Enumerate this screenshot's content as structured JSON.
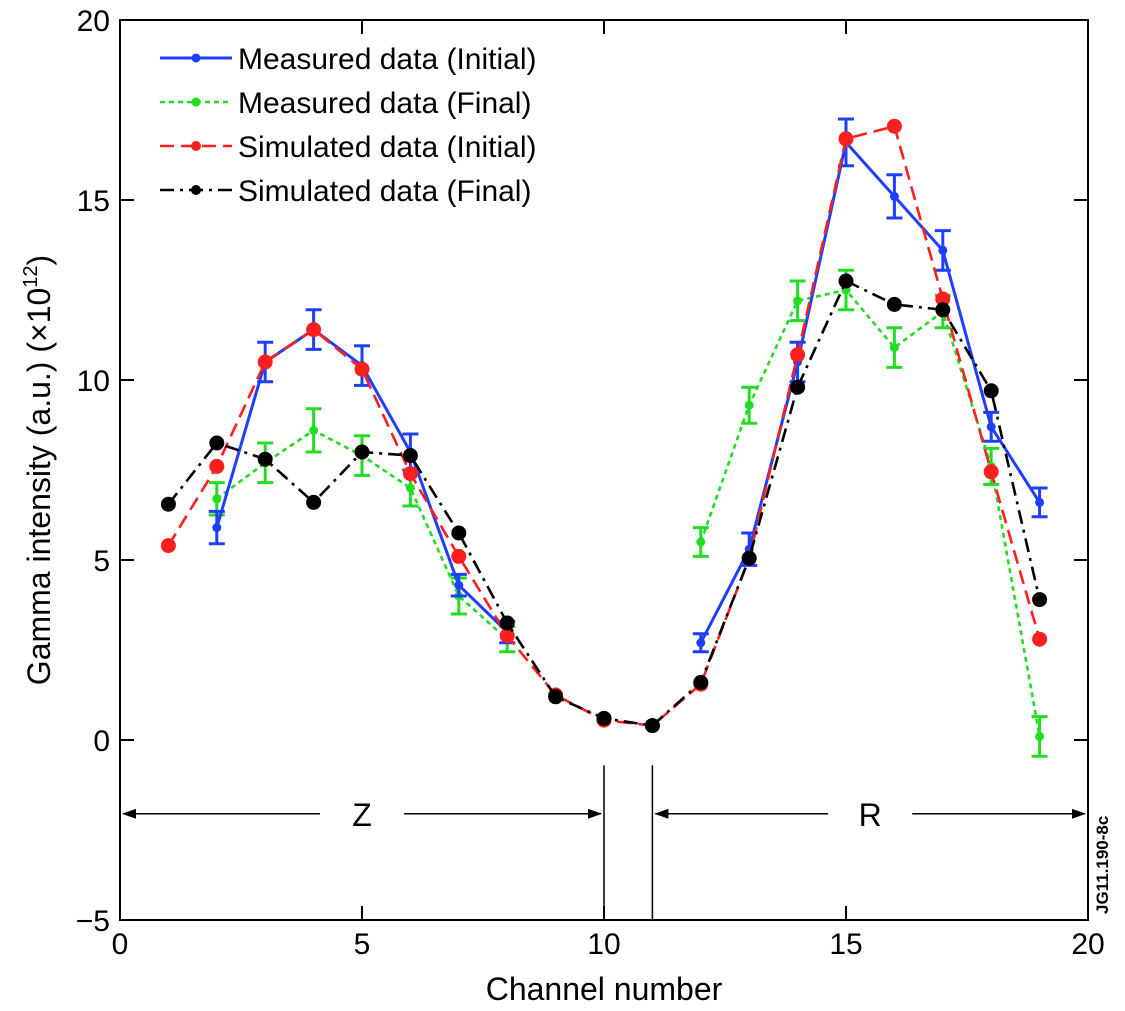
{
  "chart_data": {
    "type": "line",
    "xlabel": "Channel number",
    "ylabel": "Gamma intensity (a.u.) (×10",
    "ylabel_exponent": "12",
    "ylabel_suffix": ")",
    "xlim": [
      0,
      20
    ],
    "ylim": [
      -5,
      20
    ],
    "xticks": [
      0,
      5,
      10,
      15,
      20
    ],
    "yticks": [
      -5,
      0,
      5,
      10,
      15,
      20
    ],
    "xtick_labels": [
      "0",
      "5",
      "10",
      "15",
      "20"
    ],
    "ytick_labels": [
      "−5",
      "0",
      "5",
      "10",
      "15",
      "20"
    ],
    "grid": false,
    "legend_position": "top-left",
    "series": [
      {
        "name": "Measured data (Initial)",
        "color": "#1f3fff",
        "style": "solid",
        "marker": "small-dot",
        "x": [
          2,
          3,
          4,
          5,
          6,
          7,
          8,
          null,
          12,
          13,
          14,
          15,
          16,
          17,
          18,
          19
        ],
        "y": [
          5.9,
          10.5,
          11.4,
          10.4,
          8.0,
          4.3,
          3.0,
          null,
          2.7,
          5.3,
          10.5,
          16.6,
          15.1,
          13.6,
          8.7,
          6.6
        ],
        "err": [
          0.45,
          0.55,
          0.55,
          0.55,
          0.5,
          0.3,
          0.3,
          null,
          0.25,
          0.45,
          0.55,
          0.65,
          0.6,
          0.55,
          0.4,
          0.4
        ]
      },
      {
        "name": "Measured data (Final)",
        "color": "#22dd22",
        "style": "dotted",
        "marker": "small-dot",
        "x": [
          2,
          3,
          4,
          5,
          6,
          7,
          8,
          null,
          12,
          13,
          14,
          15,
          16,
          17,
          18,
          19
        ],
        "y": [
          6.7,
          7.7,
          8.6,
          7.9,
          7.0,
          4.0,
          2.8,
          null,
          5.5,
          9.3,
          12.2,
          12.5,
          10.9,
          11.9,
          7.6,
          0.1
        ],
        "err": [
          0.45,
          0.55,
          0.6,
          0.55,
          0.5,
          0.5,
          0.35,
          null,
          0.4,
          0.5,
          0.55,
          0.55,
          0.55,
          0.45,
          0.5,
          0.55
        ]
      },
      {
        "name": "Simulated data (Initial)",
        "color": "#ff1f1f",
        "style": "dashed",
        "marker": "large-dot",
        "x": [
          1,
          2,
          3,
          4,
          5,
          6,
          7,
          8,
          9,
          10,
          11,
          12,
          13,
          14,
          15,
          16,
          17,
          18,
          19
        ],
        "y": [
          5.4,
          7.6,
          10.5,
          11.4,
          10.3,
          7.4,
          5.1,
          2.9,
          1.25,
          0.55,
          0.4,
          1.55,
          5.05,
          10.7,
          16.7,
          17.05,
          12.25,
          7.45,
          2.8
        ]
      },
      {
        "name": "Simulated data (Final)",
        "color": "#000000",
        "style": "dash-dot",
        "marker": "large-dot",
        "x": [
          1,
          2,
          3,
          4,
          5,
          6,
          7,
          8,
          9,
          10,
          11,
          12,
          13,
          14,
          15,
          16,
          17,
          18,
          19
        ],
        "y": [
          6.55,
          8.25,
          7.8,
          6.6,
          8.0,
          7.9,
          5.75,
          3.25,
          1.2,
          0.6,
          0.4,
          1.6,
          5.05,
          9.8,
          12.75,
          12.1,
          11.95,
          9.7,
          3.9
        ]
      }
    ],
    "annotations": {
      "regions": [
        {
          "label": "Z",
          "x_start": 0,
          "x_end": 10
        },
        {
          "label": "R",
          "x_start": 11,
          "x_end": 20
        }
      ],
      "separators": [
        10,
        11
      ],
      "arrow_y": -2.05,
      "figure_id": "JG11.190-8c"
    }
  }
}
